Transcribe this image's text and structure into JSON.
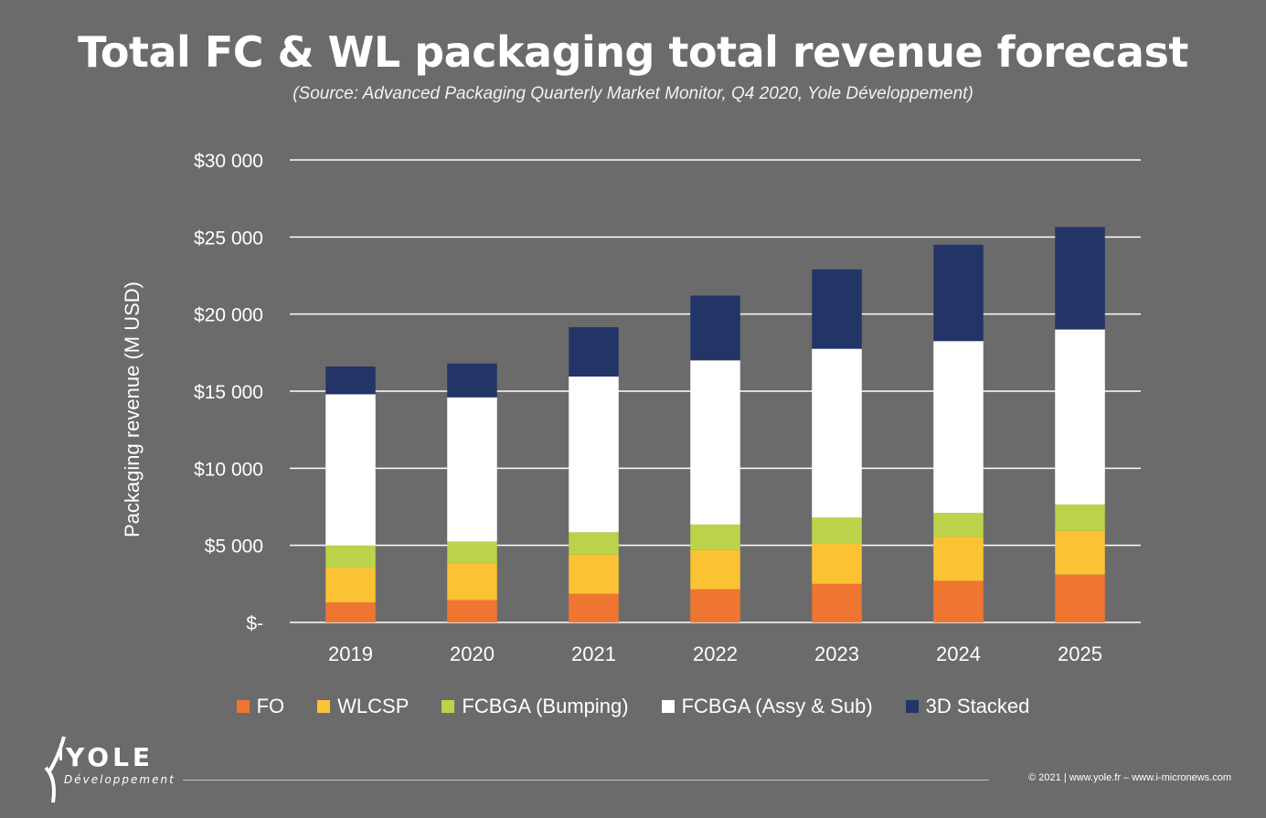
{
  "chart_data": {
    "type": "bar",
    "stacked": true,
    "title": "Total FC & WL packaging total revenue forecast",
    "subtitle": "(Source: Advanced Packaging Quarterly Market Monitor, Q4 2020, Yole Développement)",
    "xlabel": "",
    "ylabel": "Packaging revenue (M USD)",
    "ylim": [
      0,
      30000
    ],
    "yticks": [
      0,
      5000,
      10000,
      15000,
      20000,
      25000,
      30000
    ],
    "ytick_labels": [
      "$-",
      "$5 000",
      "$10 000",
      "$15 000",
      "$20 000",
      "$25 000",
      "$30 000"
    ],
    "categories": [
      "2019",
      "2020",
      "2021",
      "2022",
      "2023",
      "2024",
      "2025"
    ],
    "series": [
      {
        "name": "FO",
        "color": "#ef7630",
        "values": [
          1300,
          1450,
          1850,
          2150,
          2500,
          2700,
          3100
        ]
      },
      {
        "name": "WLCSP",
        "color": "#fbc234",
        "values": [
          2250,
          2350,
          2550,
          2550,
          2600,
          2850,
          2850
        ]
      },
      {
        "name": "FCBGA (Bumping)",
        "color": "#bbd34a",
        "values": [
          1450,
          1450,
          1450,
          1650,
          1700,
          1550,
          1700
        ]
      },
      {
        "name": "FCBGA (Assy & Sub)",
        "color": "#ffffff",
        "values": [
          9800,
          9350,
          10100,
          10650,
          10950,
          11150,
          11350
        ]
      },
      {
        "name": "3D Stacked",
        "color": "#233567",
        "values": [
          1800,
          2200,
          3200,
          4200,
          5150,
          6250,
          6650
        ]
      }
    ],
    "grid": true,
    "legend_position": "bottom"
  },
  "branding": {
    "logo_name": "YOLE",
    "logo_sub": "Développement",
    "footer": "© 2021 | www.yole.fr – www.i-micronews.com"
  }
}
